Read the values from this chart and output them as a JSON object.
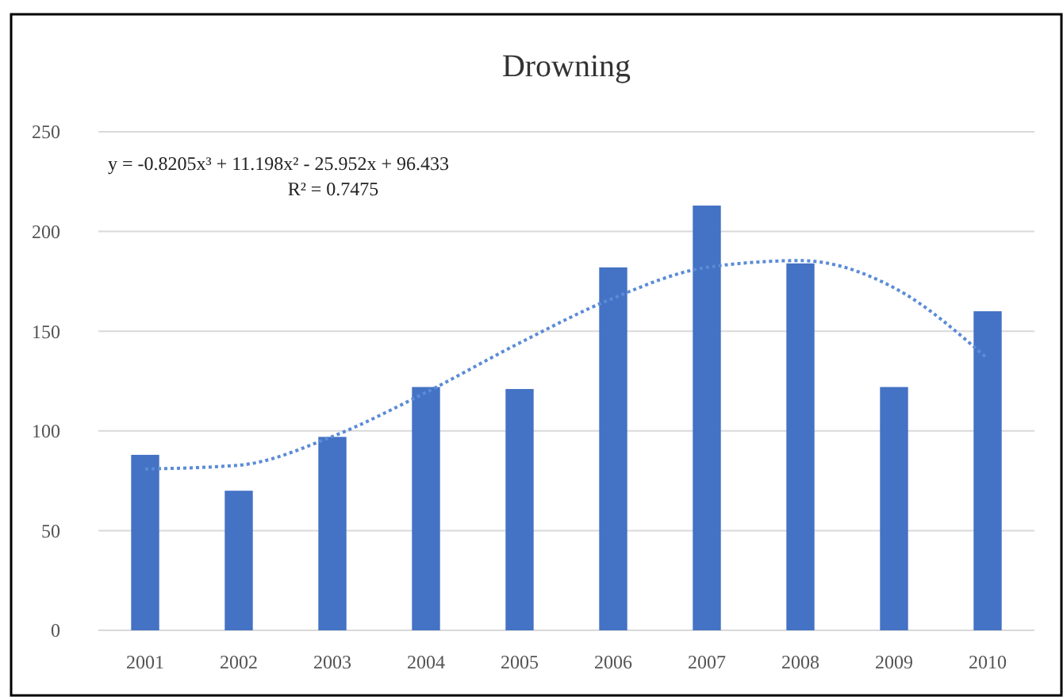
{
  "chart_data": {
    "type": "bar",
    "title": "Drowning",
    "categories": [
      "2001",
      "2002",
      "2003",
      "2004",
      "2005",
      "2006",
      "2007",
      "2008",
      "2009",
      "2010"
    ],
    "series": [
      {
        "color": "#4472c4",
        "values": [
          88,
          70,
          97,
          122,
          121,
          182,
          213,
          184,
          122,
          160
        ]
      },
      {
        "type": "line",
        "color": "#5b8bd6",
        "line_style": "dotted",
        "values": [
          80.9,
          82.8,
          97.2,
          119.3,
          144.1,
          166.6,
          182.0,
          185.4,
          171.8,
          136.2
        ]
      }
    ],
    "ylim": [
      0,
      250
    ],
    "yticks": [
      0,
      50,
      100,
      150,
      200,
      250
    ],
    "grid": "y",
    "annotations": [
      "y = -0.8205x³ + 11.198x² - 25.952x + 96.433",
      "R² = 0.7475"
    ]
  }
}
